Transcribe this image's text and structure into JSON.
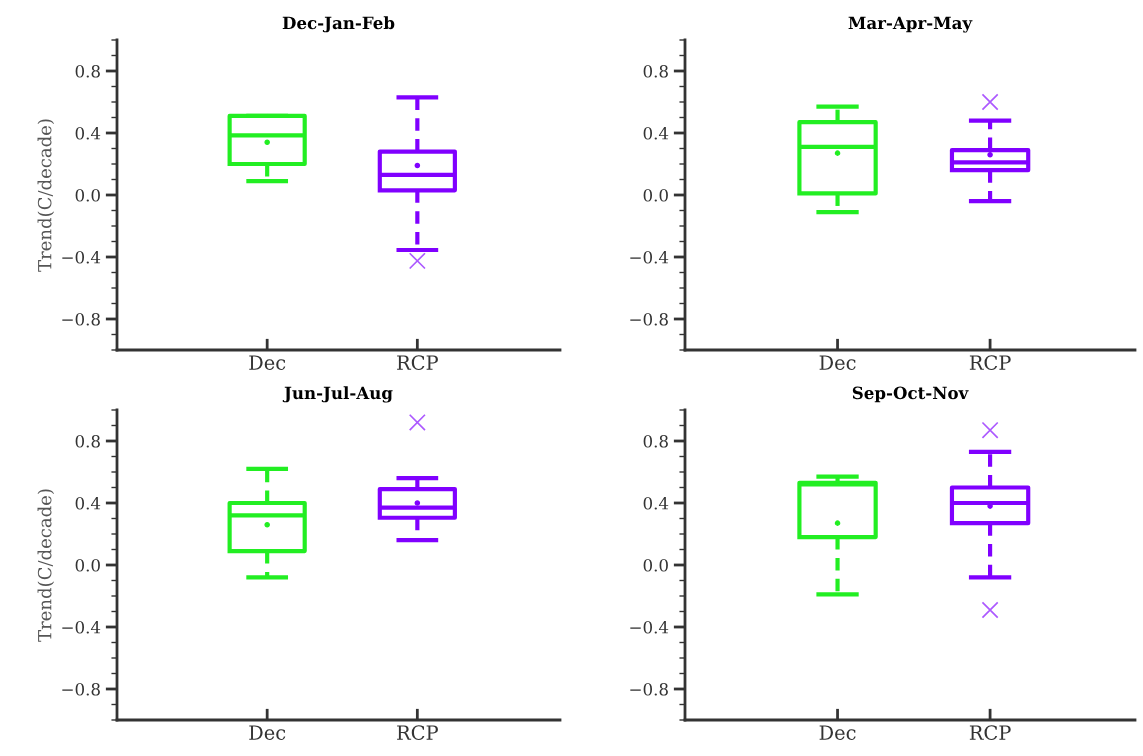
{
  "chart_data": [
    {
      "type": "box",
      "title": "Dec-Jan-Feb",
      "ylabel": "Trend(C/decade)",
      "categories": [
        "Dec",
        "RCP"
      ],
      "colors": [
        "#22ee22",
        "#8000ff"
      ],
      "ylim": [
        -1.0,
        1.0
      ],
      "yticks": [
        {
          "value": 0.8,
          "label": "0.8"
        },
        {
          "value": 0.4,
          "label": "0.4"
        },
        {
          "value": 0.0,
          "label": "0.0"
        },
        {
          "value": -0.4,
          "label": "−0.4"
        },
        {
          "value": -0.8,
          "label": "−0.8"
        }
      ],
      "grid": false,
      "line_style": "dashed",
      "boxes": [
        {
          "low": 0.09,
          "q1": 0.2,
          "median": 0.385,
          "q3": 0.51,
          "high": 0.51,
          "mean": 0.34
        },
        {
          "low": -0.355,
          "q1": 0.03,
          "median": 0.13,
          "q3": 0.28,
          "high": 0.63,
          "mean": 0.19,
          "outliers": [
            -0.425
          ]
        }
      ]
    },
    {
      "type": "box",
      "title": "Mar-Apr-May",
      "categories": [
        "Dec",
        "RCP"
      ],
      "colors": [
        "#22ee22",
        "#8000ff"
      ],
      "ylim": [
        -1.0,
        1.0
      ],
      "yticks": [
        {
          "value": 0.8,
          "label": "0.8"
        },
        {
          "value": 0.4,
          "label": "0.4"
        },
        {
          "value": 0.0,
          "label": "0.0"
        },
        {
          "value": -0.4,
          "label": "−0.4"
        },
        {
          "value": -0.8,
          "label": "−0.8"
        }
      ],
      "grid": false,
      "line_style": "dashed",
      "boxes": [
        {
          "low": -0.11,
          "q1": 0.01,
          "median": 0.31,
          "q3": 0.47,
          "high": 0.57,
          "mean": 0.27
        },
        {
          "low": -0.04,
          "q1": 0.16,
          "median": 0.21,
          "q3": 0.29,
          "high": 0.48,
          "mean": 0.26,
          "outliers": [
            0.6
          ]
        }
      ]
    },
    {
      "type": "box",
      "title": "Jun-Jul-Aug",
      "ylabel": "Trend(C/decade)",
      "categories": [
        "Dec",
        "RCP"
      ],
      "colors": [
        "#22ee22",
        "#8000ff"
      ],
      "ylim": [
        -1.0,
        1.0
      ],
      "yticks": [
        {
          "value": 0.8,
          "label": "0.8"
        },
        {
          "value": 0.4,
          "label": "0.4"
        },
        {
          "value": 0.0,
          "label": "0.0"
        },
        {
          "value": -0.4,
          "label": "−0.4"
        },
        {
          "value": -0.8,
          "label": "−0.8"
        }
      ],
      "grid": false,
      "line_style": "dashed",
      "boxes": [
        {
          "low": -0.08,
          "q1": 0.09,
          "median": 0.32,
          "q3": 0.4,
          "high": 0.62,
          "mean": 0.26
        },
        {
          "low": 0.16,
          "q1": 0.305,
          "median": 0.37,
          "q3": 0.49,
          "high": 0.56,
          "mean": 0.4,
          "outliers": [
            0.92
          ]
        }
      ]
    },
    {
      "type": "box",
      "title": "Sep-Oct-Nov",
      "categories": [
        "Dec",
        "RCP"
      ],
      "colors": [
        "#22ee22",
        "#8000ff"
      ],
      "ylim": [
        -1.0,
        1.0
      ],
      "yticks": [
        {
          "value": 0.8,
          "label": "0.8"
        },
        {
          "value": 0.4,
          "label": "0.4"
        },
        {
          "value": 0.0,
          "label": "0.0"
        },
        {
          "value": -0.4,
          "label": "−0.4"
        },
        {
          "value": -0.8,
          "label": "−0.8"
        }
      ],
      "grid": false,
      "line_style": "dashed",
      "boxes": [
        {
          "low": -0.19,
          "q1": 0.18,
          "median": 0.52,
          "q3": 0.53,
          "high": 0.57,
          "mean": 0.27
        },
        {
          "low": -0.08,
          "q1": 0.27,
          "median": 0.4,
          "q3": 0.5,
          "high": 0.73,
          "mean": 0.38,
          "outliers": [
            0.87,
            -0.29
          ]
        }
      ]
    }
  ]
}
